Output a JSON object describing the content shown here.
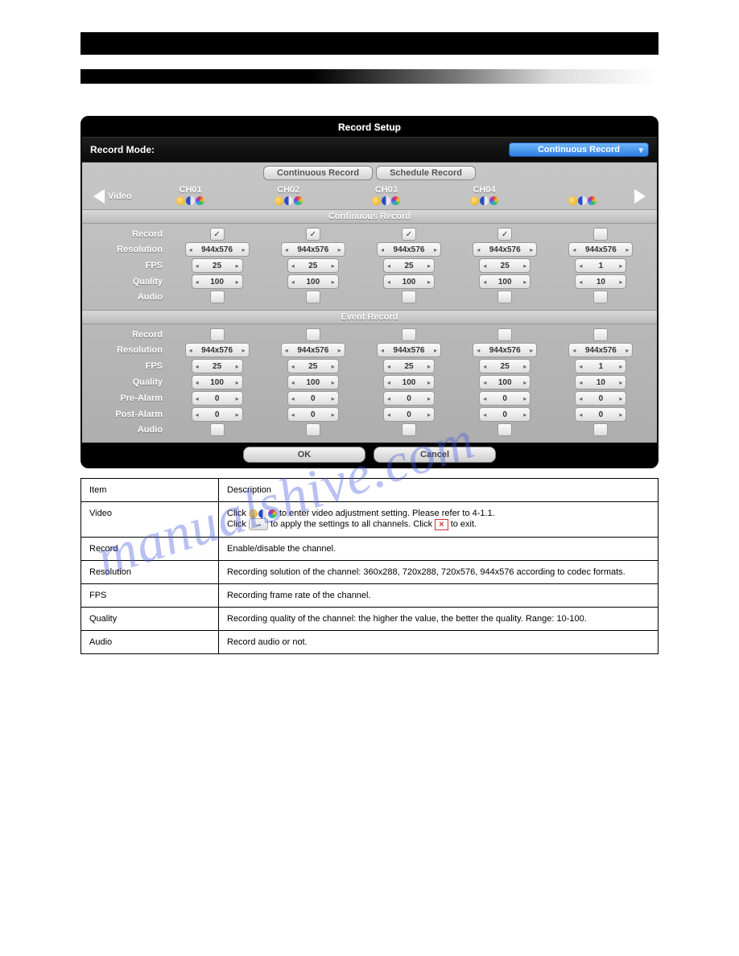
{
  "watermark": "manualshive.com",
  "panel": {
    "title": "Record Setup",
    "mode_label": "Record Mode:",
    "mode_value": "Continuous Record",
    "tabs": [
      "Continuous Record",
      "Schedule Record"
    ],
    "video_label": "Video",
    "channels": [
      "CH01",
      "CH02",
      "CH03",
      "CH04"
    ],
    "ok": "OK",
    "cancel": "Cancel",
    "sections": [
      {
        "title": "Continuous Record",
        "rows": [
          {
            "label": "Record",
            "type": "check",
            "vals": [
              true,
              true,
              true,
              true,
              false
            ]
          },
          {
            "label": "Resolution",
            "type": "spin",
            "w": "w1",
            "vals": [
              "944x576",
              "944x576",
              "944x576",
              "944x576",
              "944x576"
            ]
          },
          {
            "label": "FPS",
            "type": "spin",
            "w": "w2",
            "vals": [
              "25",
              "25",
              "25",
              "25",
              "1"
            ]
          },
          {
            "label": "Quality",
            "type": "spin",
            "w": "w2",
            "vals": [
              "100",
              "100",
              "100",
              "100",
              "10"
            ]
          },
          {
            "label": "Audio",
            "type": "check",
            "vals": [
              false,
              false,
              false,
              false,
              false
            ]
          }
        ]
      },
      {
        "title": "Event Record",
        "rows": [
          {
            "label": "Record",
            "type": "check",
            "vals": [
              false,
              false,
              false,
              false,
              false
            ]
          },
          {
            "label": "Resolution",
            "type": "spin",
            "w": "w1",
            "vals": [
              "944x576",
              "944x576",
              "944x576",
              "944x576",
              "944x576"
            ]
          },
          {
            "label": "FPS",
            "type": "spin",
            "w": "w2",
            "vals": [
              "25",
              "25",
              "25",
              "25",
              "1"
            ]
          },
          {
            "label": "Quality",
            "type": "spin",
            "w": "w2",
            "vals": [
              "100",
              "100",
              "100",
              "100",
              "10"
            ]
          },
          {
            "label": "Pre-Alarm",
            "type": "spin",
            "w": "w2",
            "vals": [
              "0",
              "0",
              "0",
              "0",
              "0"
            ]
          },
          {
            "label": "Post-Alarm",
            "type": "spin",
            "w": "w2",
            "vals": [
              "0",
              "0",
              "0",
              "0",
              "0"
            ]
          },
          {
            "label": "Audio",
            "type": "check",
            "vals": [
              false,
              false,
              false,
              false,
              false
            ]
          }
        ]
      }
    ]
  },
  "table": {
    "headers": [
      "Item",
      "Description"
    ],
    "rows": [
      {
        "item": "Video",
        "desc1": "Click ",
        "desc2": " to enter video adjustment setting. Please refer to 4-1.1.",
        "desc3": "Click ",
        "desc4": " to apply the settings to all channels. Click ",
        "desc5": " to exit."
      },
      {
        "item": "Record",
        "desc": "Enable/disable the channel."
      },
      {
        "item": "Resolution",
        "desc": "Recording solution of the channel: 360x288, 720x288, 720x576, 944x576 according to codec formats."
      },
      {
        "item": "FPS",
        "desc": "Recording frame rate of the channel."
      },
      {
        "item": "Quality",
        "desc": "Recording quality of the channel: the higher the value, the better the quality. Range: 10-100."
      },
      {
        "item": "Audio",
        "desc": "Record audio or not."
      }
    ]
  }
}
